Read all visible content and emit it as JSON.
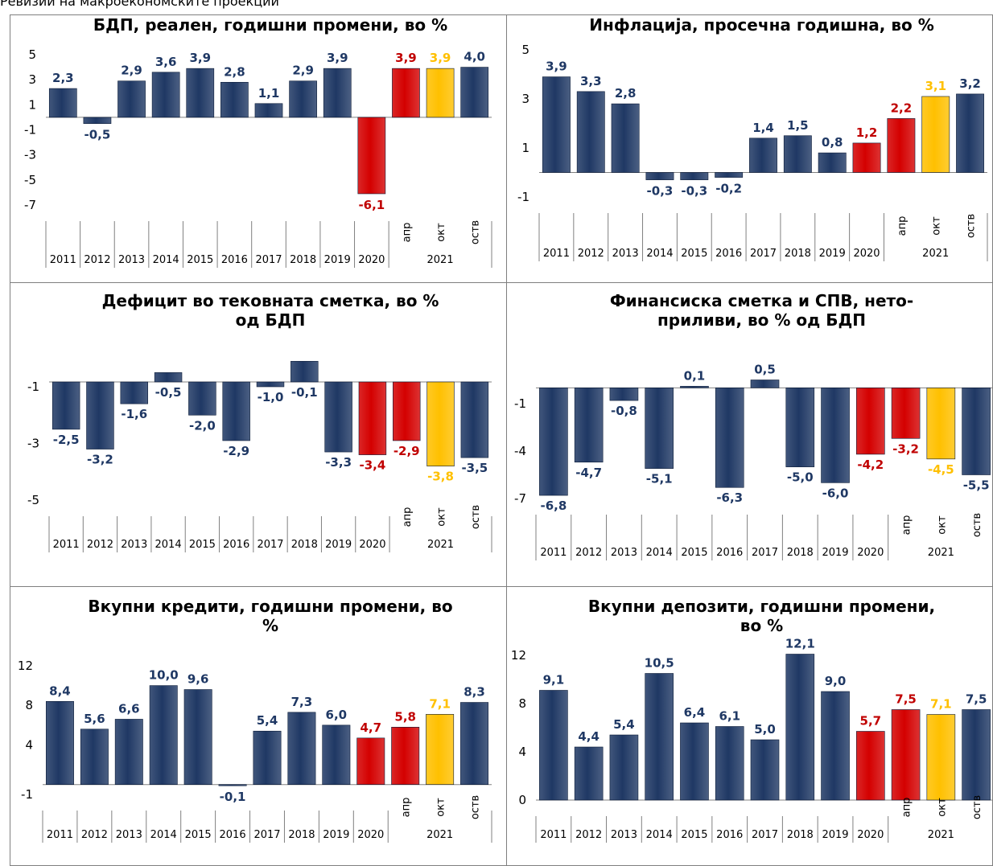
{
  "page_title": "Ревизии на макроекономските проекции",
  "colors": {
    "hist": "#1f3864",
    "apr": "#d40000",
    "okt": "#ffc000",
    "ostv": "#1f3864",
    "label_dark": "#1f3864",
    "label_red": "#c00000",
    "label_yellow": "#ffc000"
  },
  "chart_data": [
    {
      "type": "bar",
      "title": "БДП, реален, годишни промени, во %",
      "categories": [
        "2011",
        "2012",
        "2013",
        "2014",
        "2015",
        "2016",
        "2017",
        "2018",
        "2019",
        "2020",
        "апр",
        "окт",
        "оств"
      ],
      "group_label": "2021",
      "values": [
        2.3,
        -0.5,
        2.9,
        3.6,
        3.9,
        2.8,
        1.1,
        2.9,
        3.9,
        -6.1,
        3.9,
        3.9,
        4.0
      ],
      "value_labels": [
        "2,3",
        "-0,5",
        "2,9",
        "3,6",
        "3,9",
        "2,8",
        "1,1",
        "2,9",
        "3,9",
        "-6,1",
        "3,9",
        "3,9",
        "4,0"
      ],
      "yticks": [
        "5",
        "3",
        "1",
        "-1",
        "-3",
        "-5",
        "-7"
      ],
      "ylim": [
        -7,
        5
      ]
    },
    {
      "type": "bar",
      "title": "Инфлација, просечна годишна, во %",
      "categories": [
        "2011",
        "2012",
        "2013",
        "2014",
        "2015",
        "2016",
        "2017",
        "2018",
        "2019",
        "2020",
        "апр",
        "окт",
        "оств"
      ],
      "group_label": "2021",
      "values": [
        3.9,
        3.3,
        2.8,
        -0.3,
        -0.3,
        -0.2,
        1.4,
        1.5,
        0.8,
        1.2,
        2.2,
        3.1,
        3.2
      ],
      "value_labels": [
        "3,9",
        "3,3",
        "2,8",
        "-0,3",
        "-0,3",
        "-0,2",
        "1,4",
        "1,5",
        "0,8",
        "1,2",
        "2,2",
        "3,1",
        "3,2"
      ],
      "yticks": [
        "5",
        "3",
        "1",
        "-1"
      ],
      "ylim": [
        -1,
        5
      ]
    },
    {
      "type": "bar",
      "title": "Дефицит во тековната сметка, во %\nод БДП",
      "categories": [
        "2011",
        "2012",
        "2013",
        "2014",
        "2015",
        "2016",
        "2017",
        "2018",
        "2019",
        "2020",
        "апр",
        "окт",
        "оств"
      ],
      "group_label": "2021",
      "values": [
        -2.5,
        -3.2,
        -1.6,
        -0.5,
        -2.0,
        -2.9,
        -1.0,
        -0.1,
        -3.3,
        -3.4,
        -2.9,
        -3.8,
        -3.5
      ],
      "value_labels": [
        "-2,5",
        "-3,2",
        "-1,6",
        "-0,5",
        "-2,0",
        "-2,9",
        "-1,0",
        "-0,1",
        "-3,3",
        "-3,4",
        "-2,9",
        "-3,8",
        "-3,5"
      ],
      "yticks": [
        "-1",
        "-3",
        "-5"
      ],
      "ylim": [
        -5,
        -1
      ]
    },
    {
      "type": "bar",
      "title": "Финансиска сметка и СПВ, нето-\nприливи, во % од БДП",
      "categories": [
        "2011",
        "2012",
        "2013",
        "2014",
        "2015",
        "2016",
        "2017",
        "2018",
        "2019",
        "2020",
        "апр",
        "окт",
        "оств"
      ],
      "group_label": "2021",
      "values": [
        -6.8,
        -4.7,
        -0.8,
        -5.1,
        0.1,
        -6.3,
        0.5,
        -5.0,
        -6.0,
        -4.2,
        -3.2,
        -4.5,
        -5.5
      ],
      "value_labels": [
        "-6,8",
        "-4,7",
        "-0,8",
        "-5,1",
        "0,1",
        "-6,3",
        "0,5",
        "-5,0",
        "-6,0",
        "-4,2",
        "-3,2",
        "-4,5",
        "-5,5"
      ],
      "yticks": [
        "-1",
        "-4",
        "-7"
      ],
      "ylim": [
        -7,
        -1
      ]
    },
    {
      "type": "bar",
      "title": "Вкупни кредити, годишни промени, во\n%",
      "categories": [
        "2011",
        "2012",
        "2013",
        "2014",
        "2015",
        "2016",
        "2017",
        "2018",
        "2019",
        "2020",
        "апр",
        "окт",
        "оств"
      ],
      "group_label": "2021",
      "values": [
        8.4,
        5.6,
        6.6,
        10.0,
        9.6,
        -0.1,
        5.4,
        7.3,
        6.0,
        4.7,
        5.8,
        7.1,
        8.3
      ],
      "value_labels": [
        "8,4",
        "5,6",
        "6,6",
        "10,0",
        "9,6",
        "-0,1",
        "5,4",
        "7,3",
        "6,0",
        "4,7",
        "5,8",
        "7,1",
        "8,3"
      ],
      "yticks": [
        "12",
        "8",
        "4",
        "-1"
      ],
      "ylim": [
        -1,
        12
      ]
    },
    {
      "type": "bar",
      "title": "Вкупни депозити, годишни промени,\nво %",
      "categories": [
        "2011",
        "2012",
        "2013",
        "2014",
        "2015",
        "2016",
        "2017",
        "2018",
        "2019",
        "2020",
        "апр",
        "окт",
        "оств"
      ],
      "group_label": "2021",
      "values": [
        9.1,
        4.4,
        5.4,
        10.5,
        6.4,
        6.1,
        5.0,
        12.1,
        9.0,
        5.7,
        7.5,
        7.1,
        7.5
      ],
      "value_labels": [
        "9,1",
        "4,4",
        "5,4",
        "10,5",
        "6,4",
        "6,1",
        "5,0",
        "12,1",
        "9,0",
        "5,7",
        "7,5",
        "7,1",
        "7,5"
      ],
      "yticks": [
        "12",
        "8",
        "4",
        "0"
      ],
      "ylim": [
        0,
        12
      ]
    }
  ]
}
